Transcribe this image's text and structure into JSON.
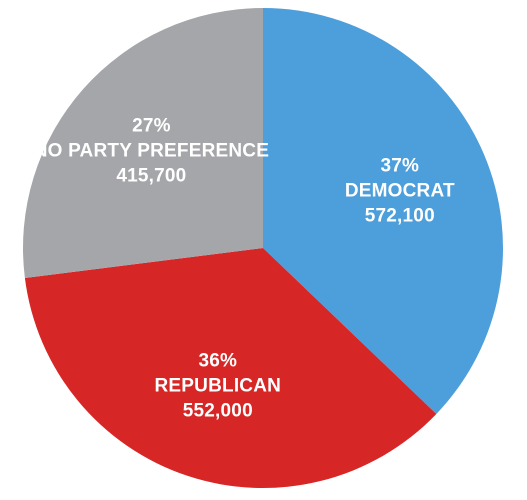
{
  "chart_data": {
    "type": "pie",
    "slices": [
      {
        "category": "DEMOCRAT",
        "percent_label": "37%",
        "value": 572100,
        "value_label": "572,100",
        "percent": 37,
        "color": "#4d9fdc"
      },
      {
        "category": "REPUBLICAN",
        "percent_label": "36%",
        "value": 552000,
        "value_label": "552,000",
        "percent": 36,
        "color": "#d72626"
      },
      {
        "category": "NO PARTY PREFERENCE",
        "percent_label": "27%",
        "value": 415700,
        "value_label": "415,700",
        "percent": 27,
        "color": "#a5a6aa"
      }
    ],
    "start_angle_deg": 0,
    "direction": "clockwise",
    "legend": "none"
  }
}
